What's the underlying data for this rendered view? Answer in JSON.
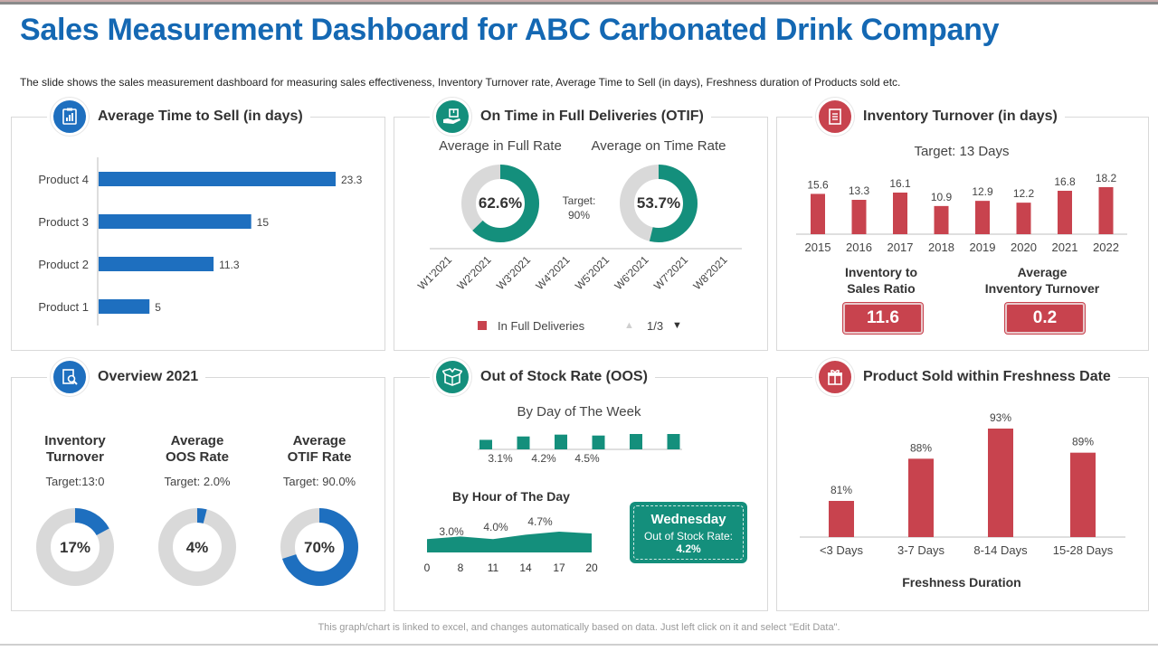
{
  "header": {
    "title": "Sales Measurement Dashboard for ABC Carbonated Drink Company",
    "subtitle": "The slide shows the sales measurement dashboard for measuring sales effectiveness, Inventory Turnover  rate, Average Time to Sell (in days), Freshness duration of Products sold etc."
  },
  "colors": {
    "blue": "#1e6fbf",
    "teal": "#148f7c",
    "red": "#c8434e",
    "grey": "#d9d9d9"
  },
  "avg_time": {
    "title": "Average Time to Sell (in days)",
    "icon": "clipboard-chart-icon",
    "chart_data": {
      "type": "bar",
      "orientation": "horizontal",
      "categories": [
        "Product 4",
        "Product 3",
        "Product 2",
        "Product 1"
      ],
      "values": [
        23.3,
        15,
        11.3,
        5
      ],
      "value_labels": [
        "23.3",
        "15",
        "11.3",
        "5"
      ]
    }
  },
  "otif": {
    "title": "On Time in Full Deliveries (OTIF)",
    "icon": "delivery-hand-icon",
    "full_rate_label": "Average  in Full Rate",
    "time_rate_label": "Average on Time Rate",
    "full_rate_value": "62.6%",
    "time_rate_value": "53.7%",
    "full_rate_fraction": 0.626,
    "time_rate_fraction": 0.537,
    "target_label": "Target:",
    "target_value": "90%",
    "weeks": [
      "W1'2021",
      "W2'2021",
      "W3'2021",
      "W4'2021",
      "W5'2021",
      "W6'2021",
      "W7'2021",
      "W8'2021"
    ],
    "legend_label": "In Full Deliveries",
    "pager": "1/3"
  },
  "inventory": {
    "title": "Inventory Turnover (in days)",
    "icon": "inventory-list-icon",
    "target": "Target: 13 Days",
    "chart_data": {
      "type": "bar",
      "categories": [
        "2015",
        "2016",
        "2017",
        "2018",
        "2019",
        "2020",
        "2021",
        "2022"
      ],
      "values": [
        15.6,
        13.3,
        16.1,
        10.9,
        12.9,
        12.2,
        16.8,
        18.2
      ],
      "value_labels": [
        "15.6",
        "13.3",
        "16.1",
        "10.9",
        "12.9",
        "12.2",
        "16.8",
        "18.2"
      ]
    },
    "ratio_label_1": "Inventory to",
    "ratio_label_2": "Sales Ratio",
    "ratio_value": "11.6",
    "avg_label_1": "Average",
    "avg_label_2": "Inventory Turnover",
    "avg_value": "0.2"
  },
  "overview": {
    "title": "Overview 2021",
    "icon": "magnifier-document-icon",
    "items": [
      {
        "label_1": "Inventory",
        "label_2": "Turnover",
        "target": "Target:13:0",
        "value": "17%",
        "fraction": 0.17
      },
      {
        "label_1": "Average",
        "label_2": "OOS Rate",
        "target": "Target:  2.0%",
        "value": "4%",
        "fraction": 0.04
      },
      {
        "label_1": "Average",
        "label_2": "OTIF Rate",
        "target": "Target:  90.0%",
        "value": "70%",
        "fraction": 0.7
      }
    ]
  },
  "oos": {
    "title": "Out of Stock Rate (OOS)",
    "icon": "open-box-icon",
    "day_title": "By Day of The Week",
    "day_chart": {
      "type": "bar",
      "values": [
        3.1,
        4.2,
        4.8,
        4.5,
        5.0,
        5.0
      ],
      "labels": [
        "3.1%",
        "4.2%",
        "4.5%"
      ]
    },
    "hour_title": "By Hour of The Day",
    "hour_chart": {
      "type": "area",
      "x": [
        "0",
        "8",
        "11",
        "14",
        "17",
        "20"
      ],
      "values": [
        3.0,
        3.6,
        3.0,
        4.0,
        4.7,
        4.3
      ],
      "labels": [
        "3.0%",
        "4.0%",
        "4.7%"
      ]
    },
    "callout_title": "Wednesday",
    "callout_sub": "Out of Stock Rate:",
    "callout_value": "4.2%"
  },
  "freshness": {
    "title": "Product Sold within Freshness Date",
    "icon": "gift-box-icon",
    "chart_data": {
      "type": "bar",
      "categories": [
        "<3 Days",
        "3-7 Days",
        "8-14 Days",
        "15-28 Days"
      ],
      "values": [
        81,
        88,
        93,
        89
      ],
      "value_labels": [
        "81%",
        "88%",
        "93%",
        "89%"
      ],
      "xlabel": "Freshness Duration"
    }
  },
  "footer": "This graph/chart is linked to excel, and changes automatically based on data. Just left click on it and select \"Edit Data\"."
}
